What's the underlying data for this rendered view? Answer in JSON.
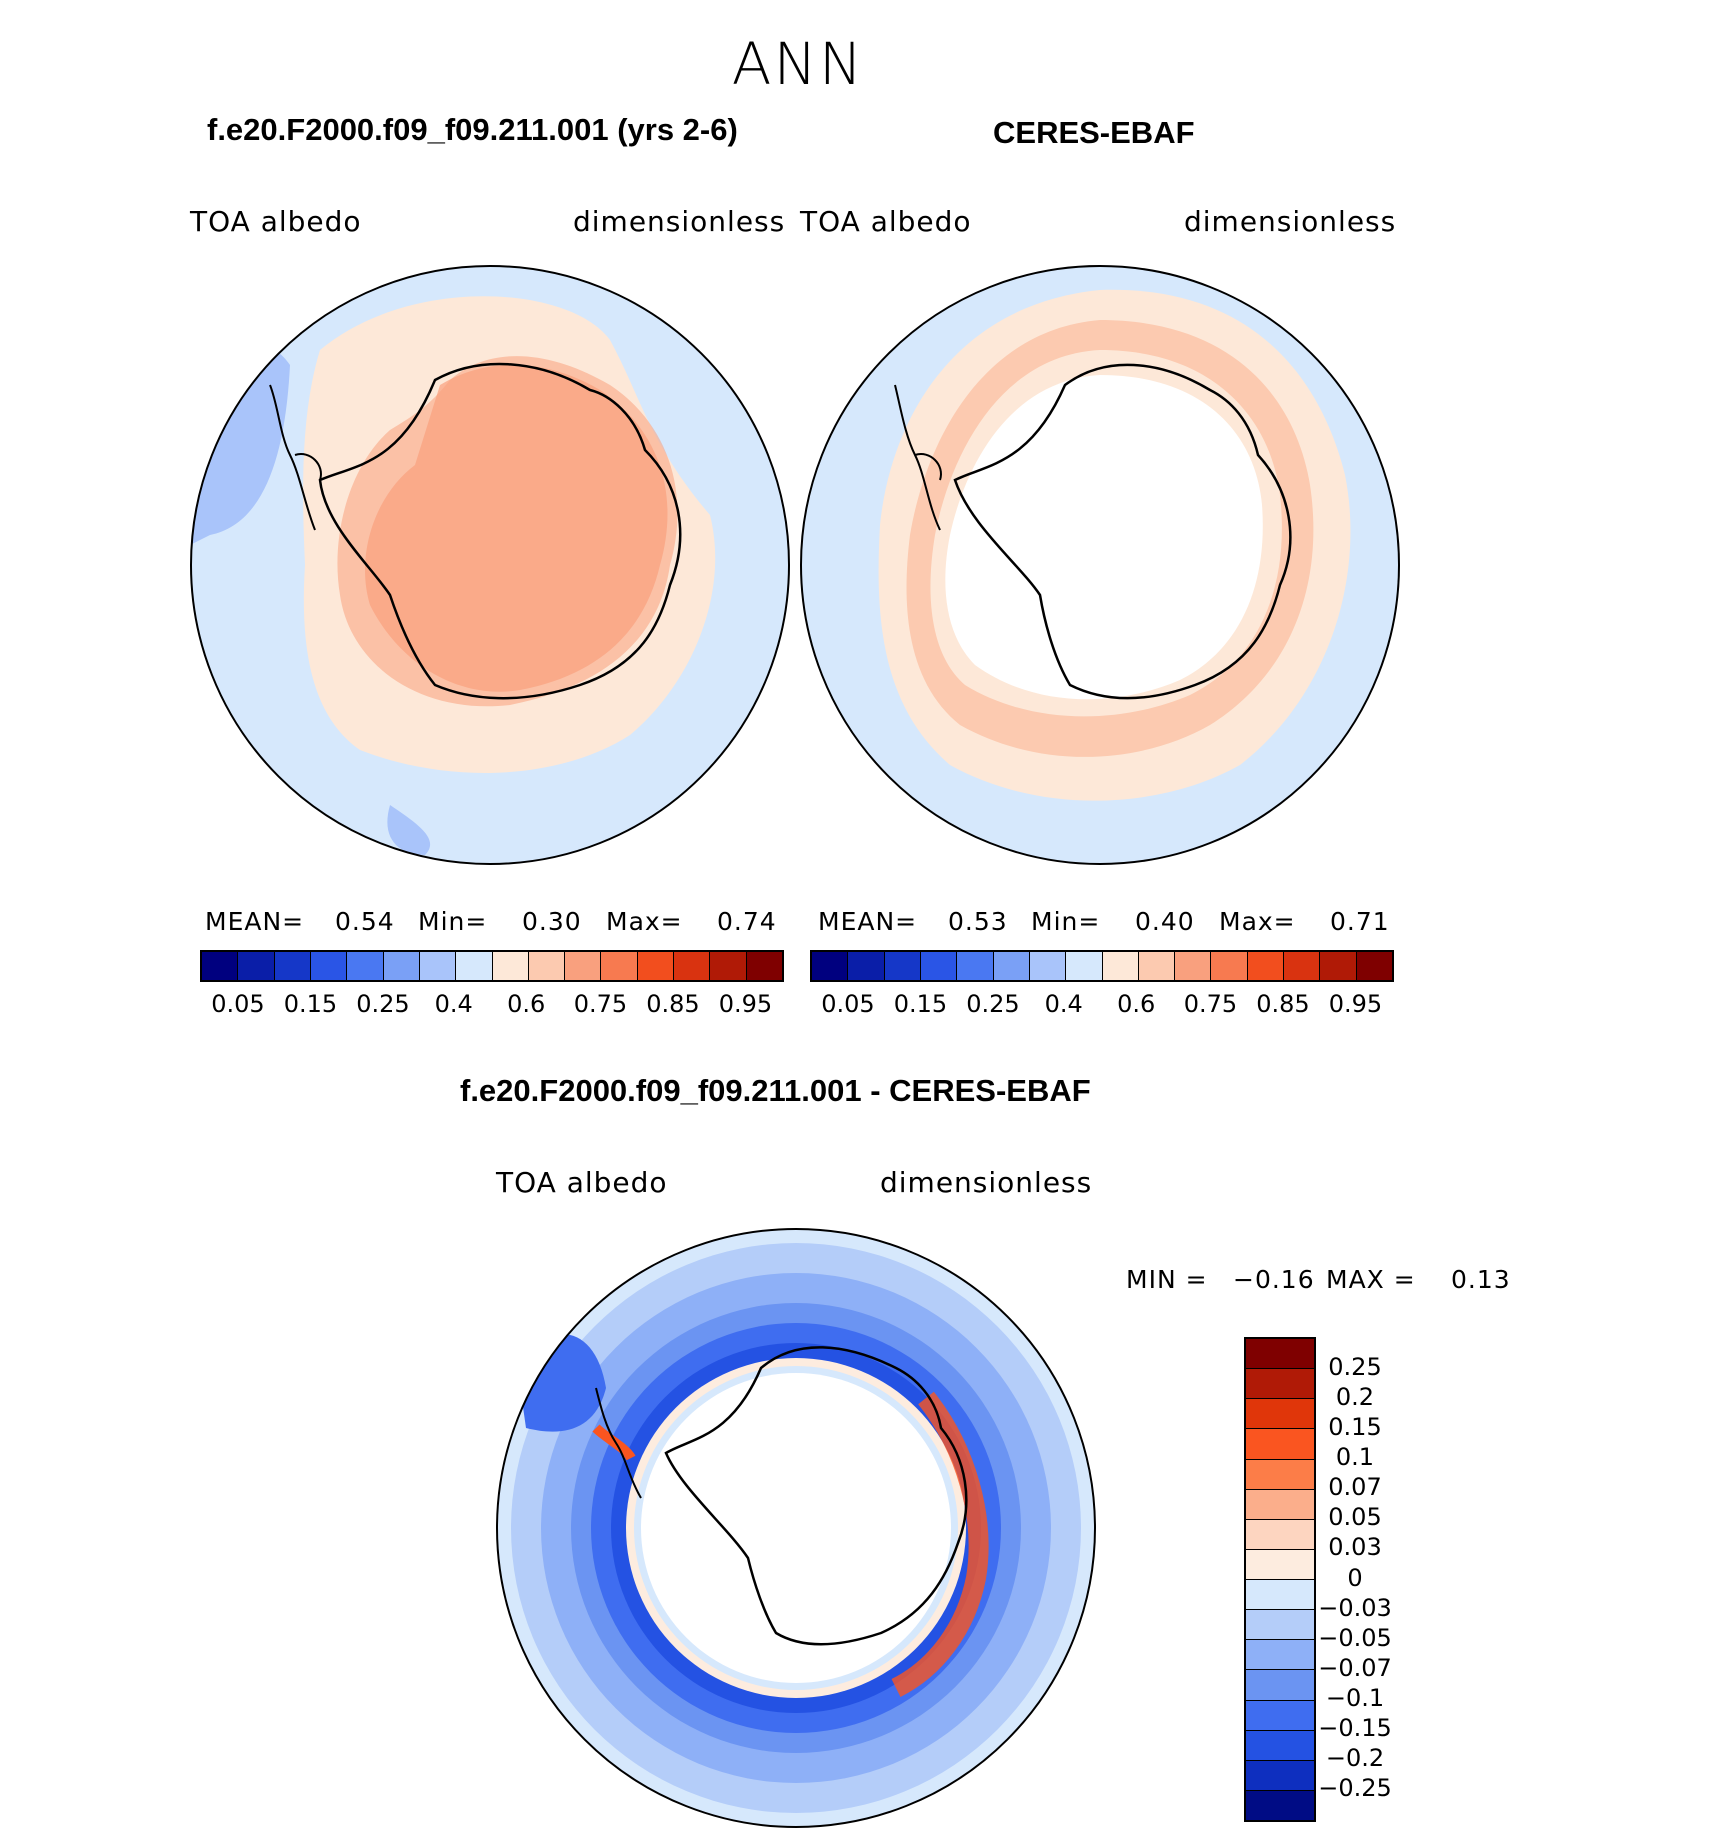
{
  "season": "ANN",
  "left_panel": {
    "case_title": "f.e20.F2000.f09_f09.211.001 (yrs 2-6)",
    "variable": "TOA albedo",
    "units": "dimensionless",
    "mean_label": "MEAN=",
    "mean_value": "0.54",
    "min_label": "Min=",
    "min_value": "0.30",
    "max_label": "Max=",
    "max_value": "0.74"
  },
  "right_panel": {
    "case_title": "CERES-EBAF",
    "variable": "TOA albedo",
    "units": "dimensionless",
    "mean_label": "MEAN=",
    "mean_value": "0.53",
    "min_label": "Min=",
    "min_value": "0.40",
    "max_label": "Max=",
    "max_value": "0.71"
  },
  "diff_panel": {
    "case_title": "f.e20.F2000.f09_f09.211.001 - CERES-EBAF",
    "variable": "TOA albedo",
    "units": "dimensionless",
    "min_label": "MIN =",
    "min_value": "−0.16",
    "max_label": "MAX =",
    "max_value": "0.13"
  },
  "abs_colorbar": {
    "colors": [
      "#00007f",
      "#0a1ea8",
      "#1537c8",
      "#2a55e6",
      "#4a78f2",
      "#7aa0f6",
      "#a9c4fa",
      "#d6e8fc",
      "#fde8d8",
      "#fccab0",
      "#f9a07e",
      "#f77a50",
      "#f24e1e",
      "#d93310",
      "#b01a06",
      "#7f0000"
    ],
    "labels": [
      "0.05",
      "0.15",
      "0.25",
      "0.4",
      "0.6",
      "0.75",
      "0.85",
      "0.95"
    ]
  },
  "diff_colorbar": {
    "colors": [
      "#7f0000",
      "#b01a06",
      "#e0360a",
      "#fa5520",
      "#fc7d48",
      "#fbae8b",
      "#fdd5c0",
      "#fdecdf",
      "#d6e8fc",
      "#b4cdf9",
      "#8eb0f7",
      "#6b94f2",
      "#3f6df0",
      "#2452e3",
      "#0e2fbf",
      "#000c85"
    ],
    "labels": [
      "0.25",
      "0.2",
      "0.15",
      "0.1",
      "0.07",
      "0.05",
      "0.03",
      "0",
      "−0.03",
      "−0.05",
      "−0.07",
      "−0.1",
      "−0.15",
      "−0.2",
      "−0.25"
    ]
  }
}
